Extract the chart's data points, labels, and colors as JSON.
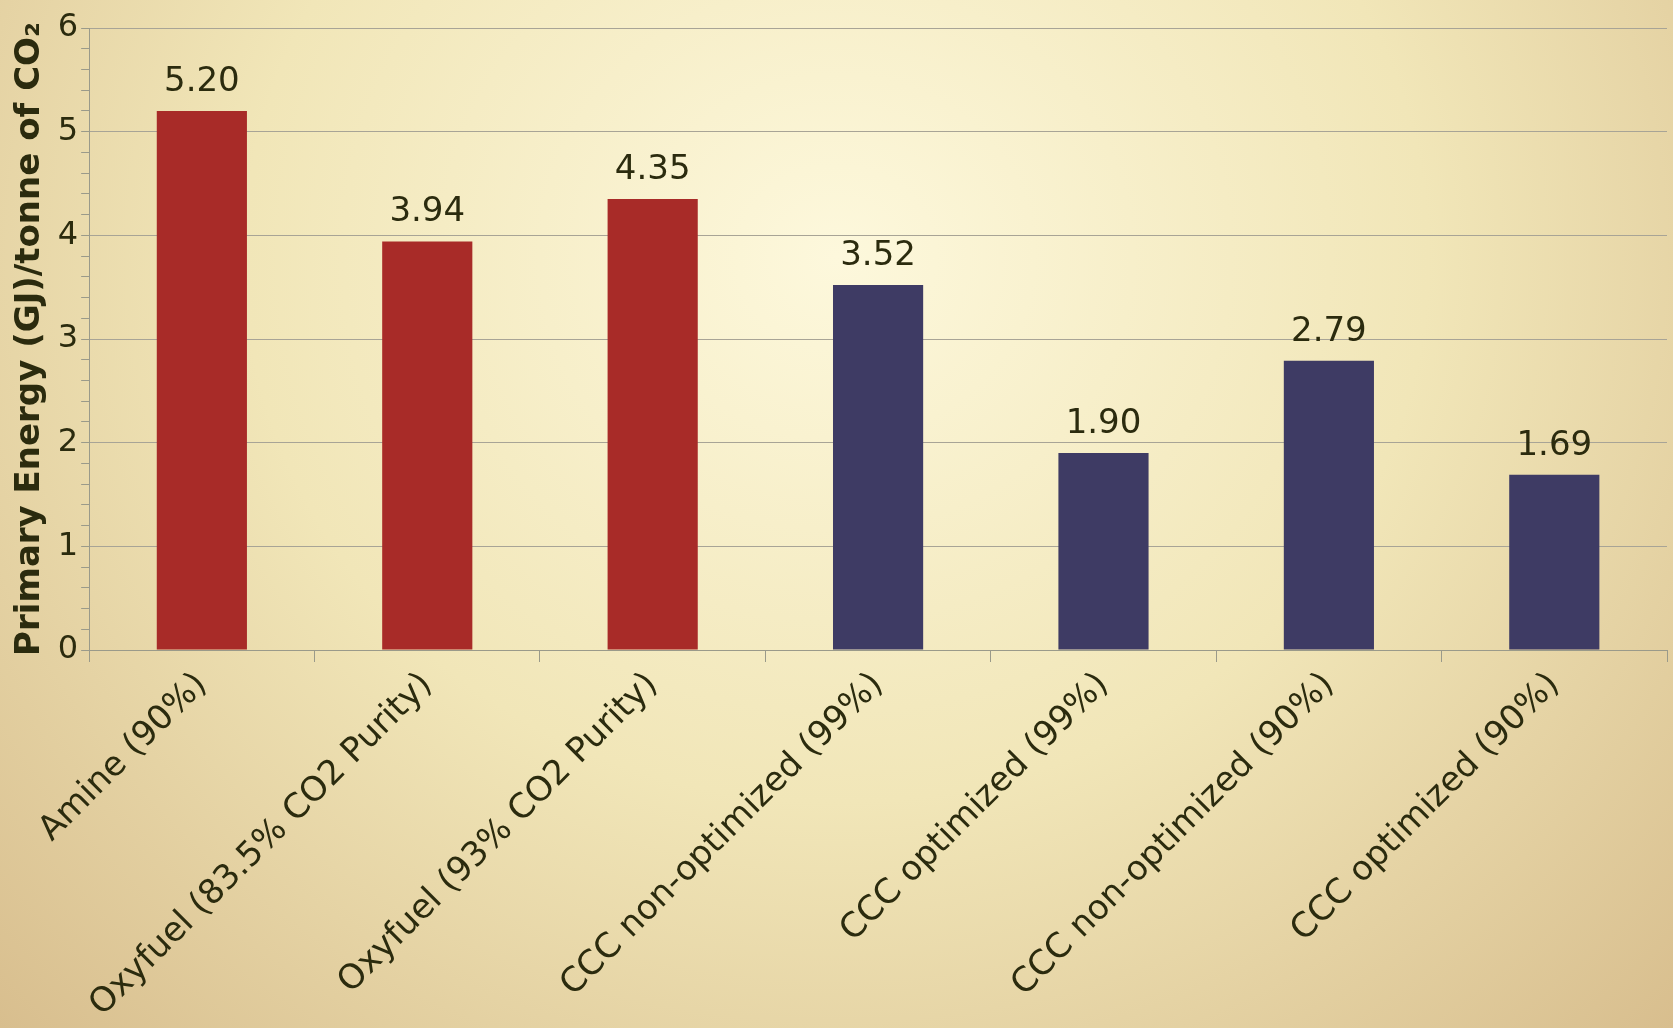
{
  "chart_data": {
    "type": "bar",
    "ylabel": "Primary Energy (GJ)/tonne of CO₂",
    "categories": [
      "Amine (90%)",
      "Oxyfuel (83.5% CO2 Purity)",
      "Oxyfuel (93% CO2 Purity)",
      "CCC non-optimized (99%)",
      "CCC optimized (99%)",
      "CCC non-optimized (90%)",
      "CCC optimized (90%)"
    ],
    "values": [
      5.2,
      3.94,
      4.35,
      3.52,
      1.9,
      2.79,
      1.69
    ],
    "colors": [
      "#a82b28",
      "#a82b28",
      "#a82b28",
      "#3e3b64",
      "#3e3b64",
      "#3e3b64",
      "#3e3b64"
    ],
    "value_labels": [
      "5.20",
      "3.94",
      "4.35",
      "3.52",
      "1.90",
      "2.79",
      "1.69"
    ],
    "ylim": [
      0,
      6
    ],
    "yticks": [
      0,
      {
        "value": 0.2,
        "label": null
      },
      {
        "value": 0.4,
        "label": null
      },
      {
        "value": 0.6,
        "label": null
      },
      {
        "value": 0.8,
        "label": null
      },
      1,
      {
        "value": 1.2,
        "label": null
      },
      {
        "value": 1.4,
        "label": null
      },
      {
        "value": 1.6,
        "label": null
      },
      {
        "value": 1.8,
        "label": null
      },
      2,
      {
        "value": 2.2,
        "label": null
      },
      {
        "value": 2.4,
        "label": null
      },
      {
        "value": 2.6,
        "label": null
      },
      {
        "value": 2.8,
        "label": null
      },
      3,
      {
        "value": 3.2,
        "label": null
      },
      {
        "value": 3.4,
        "label": null
      },
      {
        "value": 3.6,
        "label": null
      },
      {
        "value": 3.8,
        "label": null
      },
      4,
      {
        "value": 4.2,
        "label": null
      },
      {
        "value": 4.4,
        "label": null
      },
      {
        "value": 4.6,
        "label": null
      },
      {
        "value": 4.8,
        "label": null
      },
      5,
      {
        "value": 5.2,
        "label": null
      },
      {
        "value": 5.4,
        "label": null
      },
      {
        "value": 5.6,
        "label": null
      },
      {
        "value": 5.8,
        "label": null
      },
      6
    ],
    "grid": "y"
  }
}
